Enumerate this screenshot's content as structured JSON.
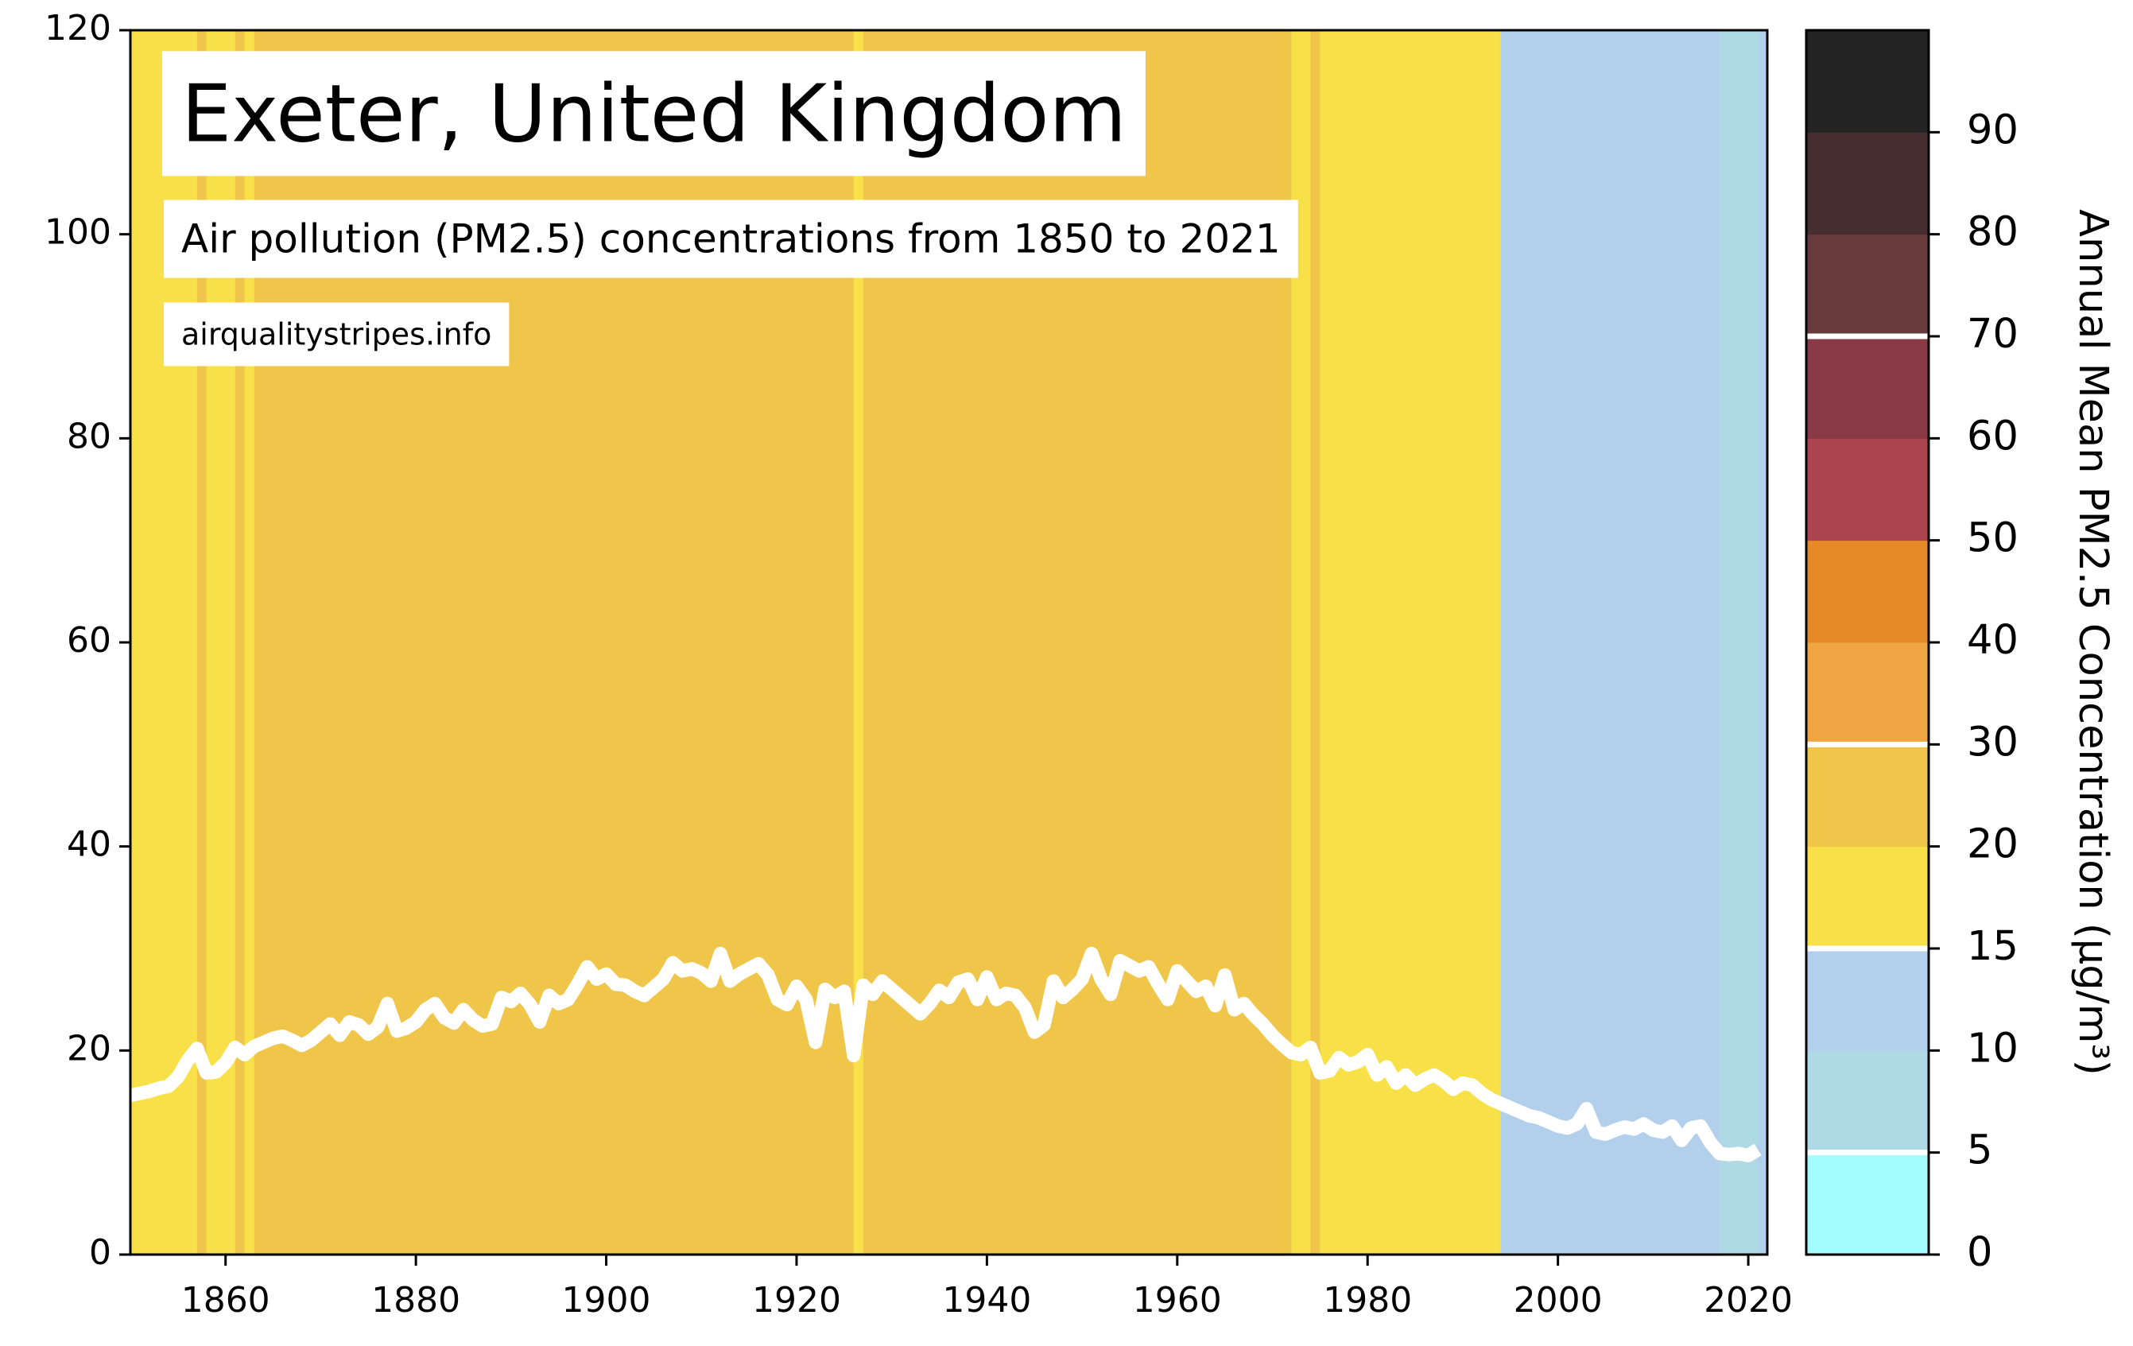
{
  "chart_data": {
    "type": "line",
    "title": "Exeter, United Kingdom",
    "subtitle": "Air pollution (PM2.5) concentrations from 1850 to 2021",
    "source": "airqualitystripes.info",
    "x": [
      1850,
      1851,
      1852,
      1853,
      1854,
      1855,
      1856,
      1857,
      1858,
      1859,
      1860,
      1861,
      1862,
      1863,
      1864,
      1865,
      1866,
      1867,
      1868,
      1869,
      1870,
      1871,
      1872,
      1873,
      1874,
      1875,
      1876,
      1877,
      1878,
      1879,
      1880,
      1881,
      1882,
      1883,
      1884,
      1885,
      1886,
      1887,
      1888,
      1889,
      1890,
      1891,
      1892,
      1893,
      1894,
      1895,
      1896,
      1897,
      1898,
      1899,
      1900,
      1901,
      1902,
      1903,
      1904,
      1905,
      1906,
      1907,
      1908,
      1909,
      1910,
      1911,
      1912,
      1913,
      1914,
      1915,
      1916,
      1917,
      1918,
      1919,
      1920,
      1921,
      1922,
      1923,
      1924,
      1925,
      1926,
      1927,
      1928,
      1929,
      1930,
      1931,
      1932,
      1933,
      1934,
      1935,
      1936,
      1937,
      1938,
      1939,
      1940,
      1941,
      1942,
      1943,
      1944,
      1945,
      1946,
      1947,
      1948,
      1949,
      1950,
      1951,
      1952,
      1953,
      1954,
      1955,
      1956,
      1957,
      1958,
      1959,
      1960,
      1961,
      1962,
      1963,
      1964,
      1965,
      1966,
      1967,
      1968,
      1969,
      1970,
      1971,
      1972,
      1973,
      1974,
      1975,
      1976,
      1977,
      1978,
      1979,
      1980,
      1981,
      1982,
      1983,
      1984,
      1985,
      1986,
      1987,
      1988,
      1989,
      1990,
      1991,
      1992,
      1993,
      1994,
      1995,
      1996,
      1997,
      1998,
      1999,
      2000,
      2001,
      2002,
      2003,
      2004,
      2005,
      2006,
      2007,
      2008,
      2009,
      2010,
      2011,
      2012,
      2013,
      2014,
      2015,
      2016,
      2017,
      2018,
      2019,
      2020,
      2021
    ],
    "series": [
      {
        "color": "#ffffff",
        "values": [
          15.6,
          15.8,
          16.0,
          16.3,
          16.5,
          17.4,
          19.0,
          20.2,
          17.8,
          17.9,
          18.8,
          20.3,
          19.6,
          20.4,
          20.8,
          21.2,
          21.4,
          21.0,
          20.5,
          21.0,
          21.8,
          22.6,
          21.5,
          22.8,
          22.5,
          21.6,
          22.3,
          24.6,
          21.9,
          22.2,
          22.8,
          24.0,
          24.6,
          23.2,
          22.7,
          24.0,
          23.0,
          22.4,
          22.6,
          25.2,
          24.8,
          25.6,
          24.5,
          22.8,
          25.4,
          24.6,
          25.0,
          26.5,
          28.2,
          27.0,
          27.5,
          26.5,
          26.4,
          25.8,
          25.4,
          26.2,
          27.0,
          28.6,
          27.8,
          28.0,
          27.6,
          26.8,
          29.5,
          26.8,
          27.5,
          28.0,
          28.5,
          27.4,
          25.0,
          24.5,
          26.3,
          25.0,
          20.8,
          26.0,
          25.2,
          25.8,
          19.5,
          26.4,
          25.5,
          26.8,
          26.0,
          25.2,
          24.4,
          23.6,
          24.6,
          25.9,
          25.2,
          26.7,
          27.0,
          25.0,
          27.2,
          25.0,
          25.6,
          25.4,
          24.2,
          21.8,
          22.5,
          26.8,
          25.2,
          26.0,
          27.0,
          29.5,
          27.0,
          25.5,
          28.8,
          28.3,
          27.8,
          28.2,
          26.5,
          25.0,
          27.8,
          26.8,
          25.8,
          26.3,
          24.4,
          27.4,
          24.0,
          24.6,
          23.5,
          22.6,
          21.5,
          20.6,
          19.8,
          19.6,
          20.3,
          17.8,
          18.0,
          19.3,
          18.6,
          18.9,
          19.6,
          17.6,
          18.4,
          16.8,
          17.6,
          16.6,
          17.2,
          17.6,
          17.0,
          16.2,
          16.8,
          16.6,
          15.8,
          15.2,
          14.8,
          14.4,
          14.0,
          13.6,
          13.4,
          13.0,
          12.6,
          12.4,
          12.8,
          14.3,
          12.0,
          11.8,
          12.2,
          12.5,
          12.3,
          12.8,
          12.2,
          12.0,
          12.6,
          11.2,
          12.4,
          12.6,
          11.0,
          9.9,
          9.8,
          9.9,
          9.7,
          10.3
        ]
      }
    ],
    "xlim": [
      1850,
      2022
    ],
    "ylim": [
      0,
      120
    ],
    "xticks": [
      1860,
      1880,
      1900,
      1920,
      1940,
      1960,
      1980,
      2000,
      2020
    ],
    "yticks": [
      0,
      20,
      40,
      60,
      80,
      100,
      120
    ],
    "colorbar": {
      "label": "Annual Mean PM2.5 Concentration (μg/m³)",
      "bounds": [
        0,
        5,
        10,
        15,
        20,
        30,
        40,
        50,
        60,
        70,
        80,
        90,
        100
      ],
      "colors": [
        "#a3fdfe",
        "#b0d9e6",
        "#b2cfec",
        "#f8e148",
        "#f0c64a",
        "#efa541",
        "#e68a27",
        "#ad4550",
        "#883a47",
        "#673a3c",
        "#462d30",
        "#242424"
      ],
      "ticks": [
        0,
        5,
        10,
        15,
        20,
        30,
        40,
        50,
        60,
        70,
        80,
        90
      ],
      "markers": [
        5,
        15,
        30,
        70
      ]
    }
  }
}
